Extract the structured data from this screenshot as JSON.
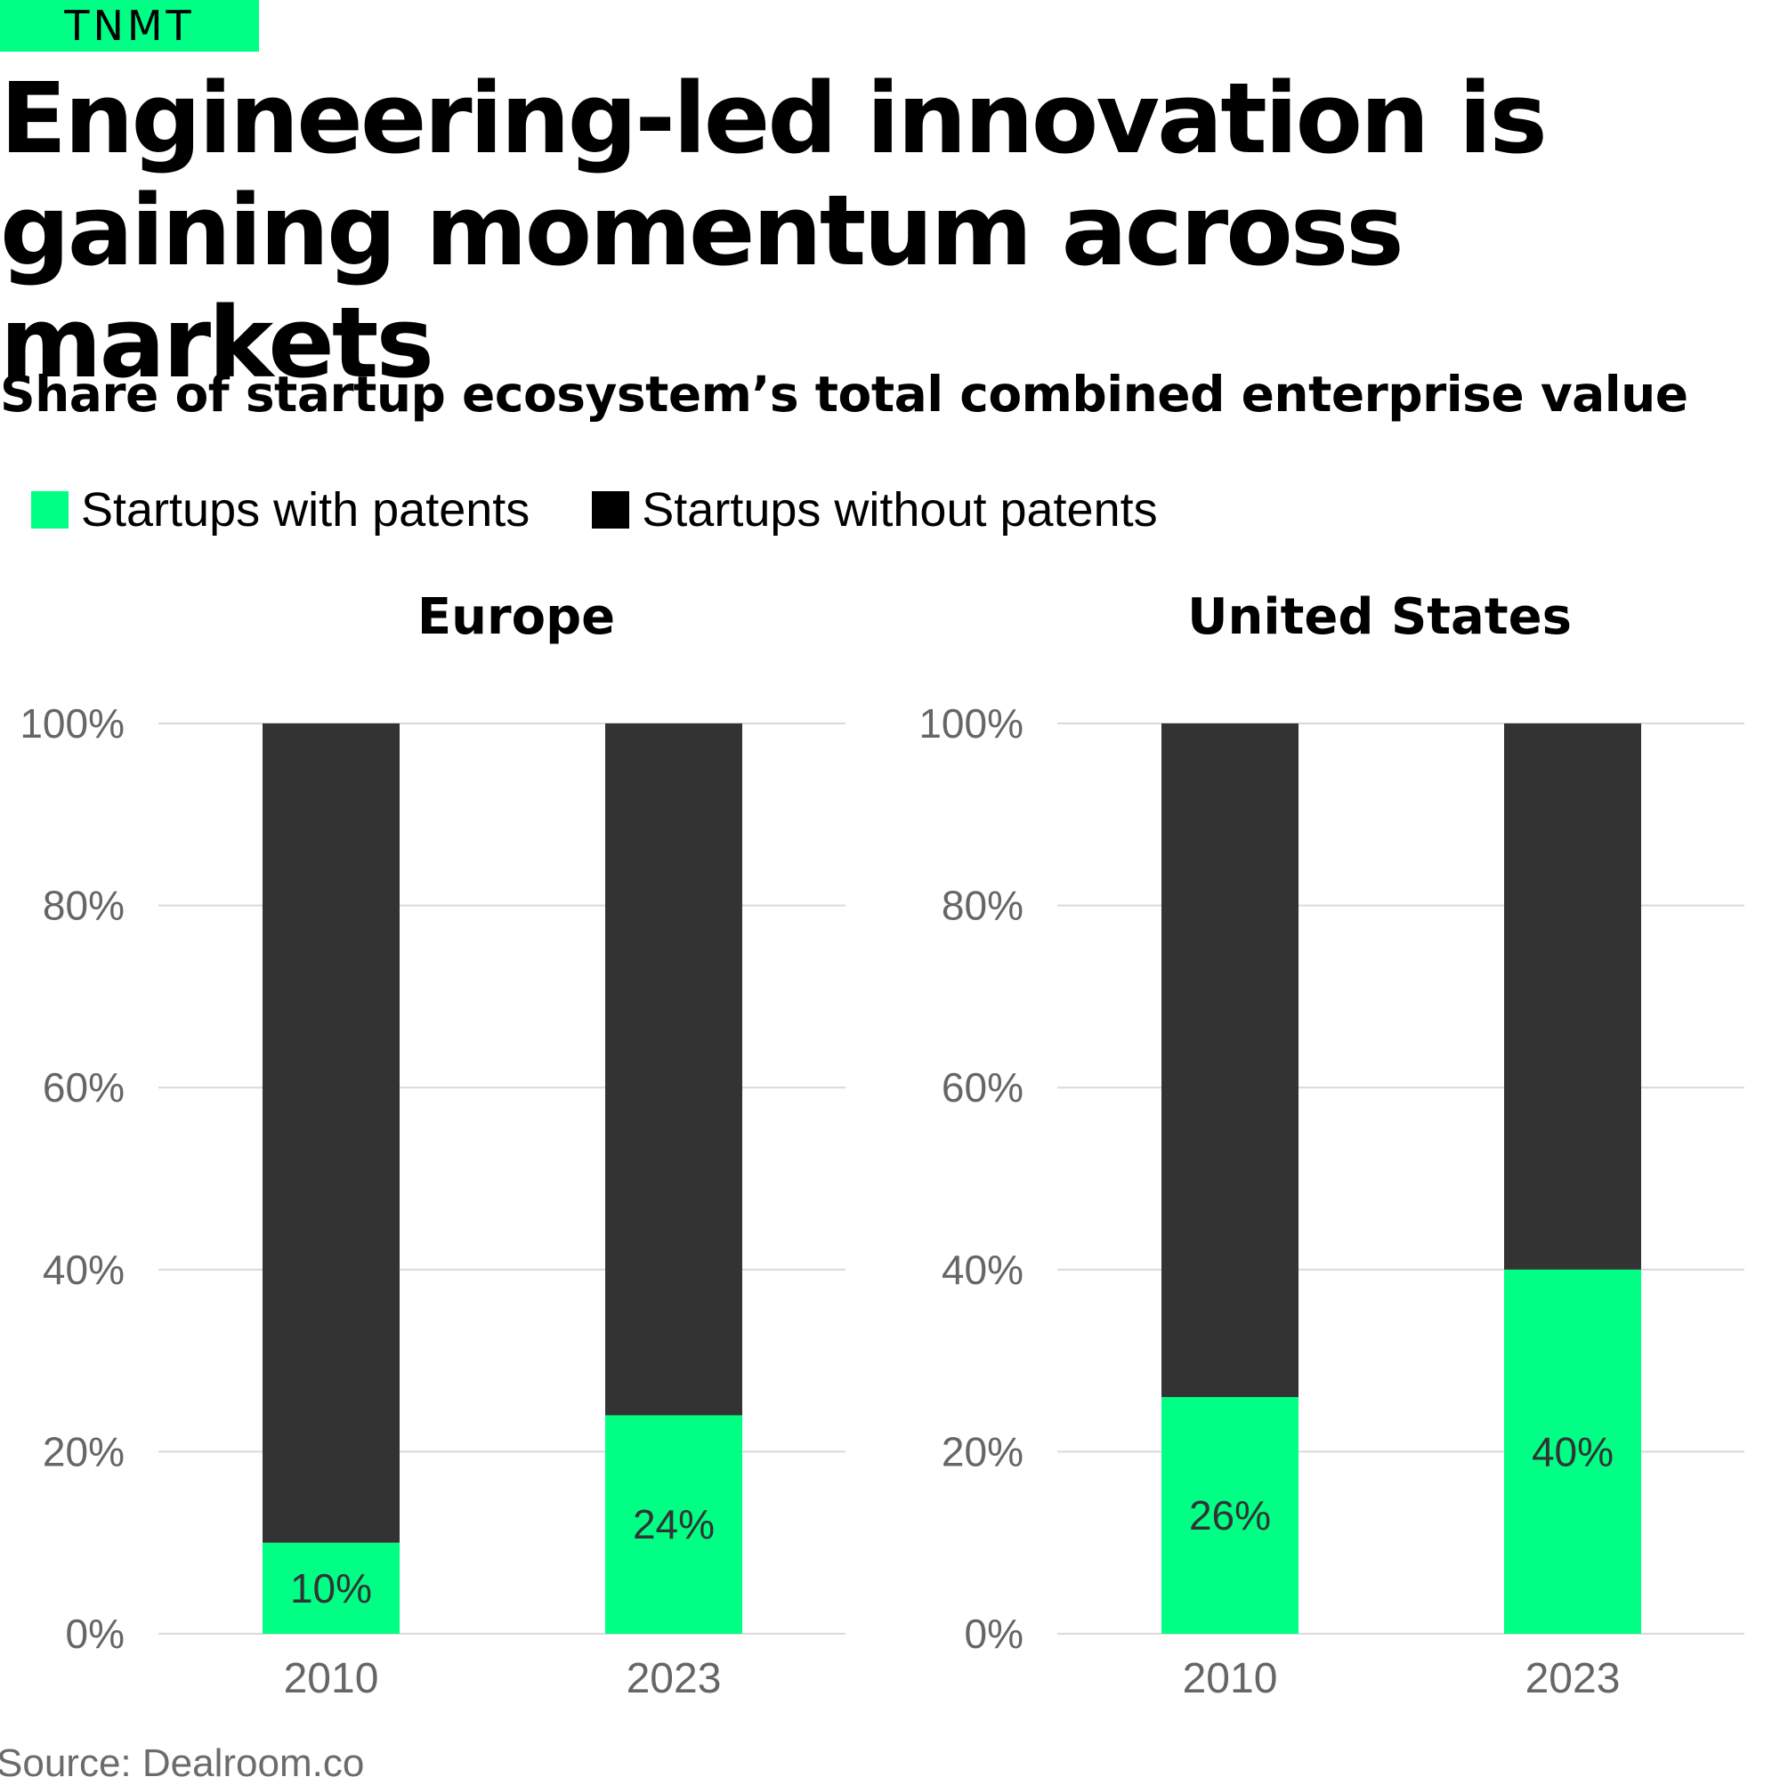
{
  "brand": {
    "name": "TNMT"
  },
  "header": {
    "title": "Engineering-led innovation is gaining momentum across markets",
    "subtitle": "Share of startup ecosystem’s total combined enterprise value"
  },
  "legend": [
    {
      "label": "Startups with patents",
      "color": "#00ff85"
    },
    {
      "label": "Startups without patents",
      "color": "#000000"
    }
  ],
  "colors": {
    "with_patents": "#00ff85",
    "without_patents": "#333333",
    "gridline": "#d9d9d9",
    "tick_text": "#666666",
    "value_label": "#333333"
  },
  "chart_data": [
    {
      "type": "bar",
      "stacked": true,
      "title": "Europe",
      "categories": [
        "2010",
        "2023"
      ],
      "series": [
        {
          "name": "Startups with patents",
          "values": [
            10,
            24
          ]
        },
        {
          "name": "Startups without patents",
          "values": [
            90,
            76
          ]
        }
      ],
      "data_labels": [
        "10%",
        "24%"
      ],
      "ylim": [
        0,
        100
      ],
      "yticks": [
        "0%",
        "20%",
        "40%",
        "60%",
        "80%",
        "100%"
      ],
      "grid": true,
      "legend_position": "top-left"
    },
    {
      "type": "bar",
      "stacked": true,
      "title": "United States",
      "categories": [
        "2010",
        "2023"
      ],
      "series": [
        {
          "name": "Startups with patents",
          "values": [
            26,
            40
          ]
        },
        {
          "name": "Startups without patents",
          "values": [
            74,
            60
          ]
        }
      ],
      "data_labels": [
        "26%",
        "40%"
      ],
      "ylim": [
        0,
        100
      ],
      "yticks": [
        "0%",
        "20%",
        "40%",
        "60%",
        "80%",
        "100%"
      ],
      "grid": true,
      "legend_position": "top-left"
    }
  ],
  "footer": {
    "source": "Source: Dealroom.co"
  }
}
